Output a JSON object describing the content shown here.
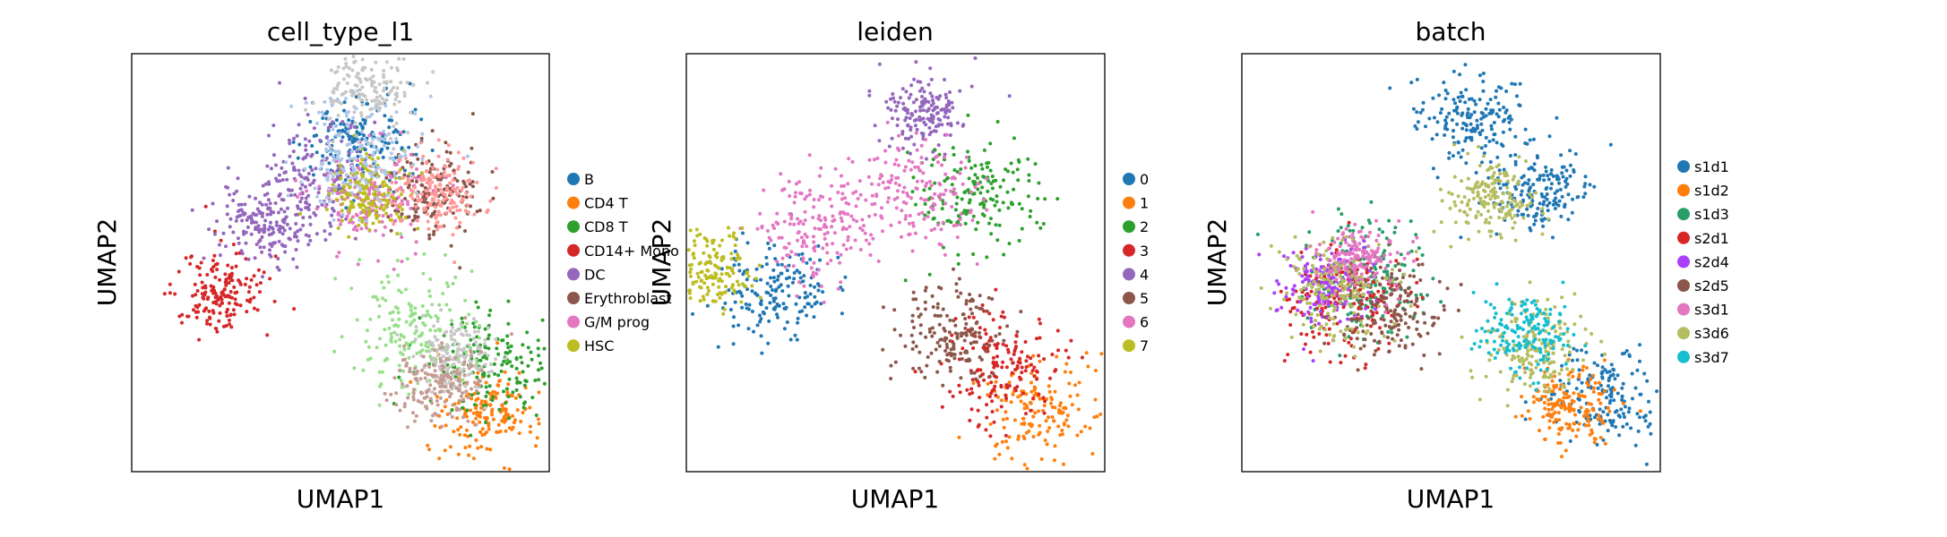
{
  "chart_data": [
    {
      "type": "scatter",
      "title": "cell_type_l1",
      "xlabel": "UMAP1",
      "ylabel": "UMAP2",
      "grid": false,
      "ticks": false,
      "legend_position": "right",
      "series": [
        {
          "name": "B",
          "color": "#1f77b4",
          "centers": [
            [
              0.55,
              0.79
            ]
          ]
        },
        {
          "name": "CD4 T",
          "color": "#ff7f0e",
          "centers": [
            [
              0.85,
              0.14
            ]
          ]
        },
        {
          "name": "CD8 T",
          "color": "#2ca02c",
          "centers": [
            [
              0.86,
              0.26
            ]
          ]
        },
        {
          "name": "CD14+ Mono",
          "color": "#d62728",
          "centers": [
            [
              0.21,
              0.43
            ]
          ]
        },
        {
          "name": "DC",
          "color": "#9467bd",
          "centers": [
            [
              0.44,
              0.7
            ],
            [
              0.31,
              0.59
            ]
          ]
        },
        {
          "name": "Erythroblast",
          "color": "#8c564b",
          "centers": [
            [
              0.71,
              0.67
            ]
          ]
        },
        {
          "name": "G/M prog",
          "color": "#e377c2",
          "centers": [
            [
              0.57,
              0.66
            ]
          ]
        },
        {
          "name": "HSC",
          "color": "#bcbd22",
          "centers": [
            [
              0.56,
              0.67
            ]
          ]
        },
        {
          "name": "",
          "color": "#98df8a",
          "centers": [
            [
              0.67,
              0.34
            ]
          ]
        },
        {
          "name": "",
          "color": "#c7c7c7",
          "centers": [
            [
              0.57,
              0.92
            ],
            [
              0.77,
              0.27
            ]
          ]
        },
        {
          "name": "",
          "color": "#ff9896",
          "centers": [
            [
              0.73,
              0.67
            ]
          ]
        },
        {
          "name": "",
          "color": "#aec7e8",
          "centers": [
            [
              0.54,
              0.76
            ]
          ]
        },
        {
          "name": "",
          "color": "#c49c94",
          "centers": [
            [
              0.74,
              0.22
            ]
          ]
        }
      ]
    },
    {
      "type": "scatter",
      "title": "leiden",
      "xlabel": "UMAP1",
      "ylabel": "UMAP2",
      "grid": false,
      "ticks": false,
      "legend_position": "right",
      "series": [
        {
          "name": "0",
          "color": "#1f77b4",
          "centers": [
            [
              0.21,
              0.43
            ]
          ]
        },
        {
          "name": "1",
          "color": "#ff7f0e",
          "centers": [
            [
              0.85,
              0.14
            ]
          ]
        },
        {
          "name": "2",
          "color": "#2ca02c",
          "centers": [
            [
              0.7,
              0.67
            ]
          ]
        },
        {
          "name": "3",
          "color": "#d62728",
          "centers": [
            [
              0.75,
              0.25
            ]
          ]
        },
        {
          "name": "4",
          "color": "#9467bd",
          "centers": [
            [
              0.57,
              0.86
            ]
          ]
        },
        {
          "name": "5",
          "color": "#8c564b",
          "centers": [
            [
              0.64,
              0.34
            ]
          ]
        },
        {
          "name": "6",
          "color": "#e377c2",
          "centers": [
            [
              0.55,
              0.66
            ],
            [
              0.31,
              0.59
            ]
          ]
        },
        {
          "name": "7",
          "color": "#bcbd22",
          "centers": [
            [
              0.05,
              0.48
            ]
          ]
        }
      ]
    },
    {
      "type": "scatter",
      "title": "batch",
      "xlabel": "UMAP1",
      "ylabel": "UMAP2",
      "grid": false,
      "ticks": false,
      "legend_position": "right",
      "series": [
        {
          "name": "s1d1",
          "color": "#1f77b4",
          "centers": [
            [
              0.55,
              0.85
            ],
            [
              0.72,
              0.67
            ],
            [
              0.87,
              0.18
            ]
          ]
        },
        {
          "name": "s1d2",
          "color": "#ff7f0e",
          "centers": [
            [
              0.78,
              0.16
            ]
          ]
        },
        {
          "name": "s1d3",
          "color": "#279e68",
          "centers": [
            [
              0.3,
              0.45
            ]
          ]
        },
        {
          "name": "s2d1",
          "color": "#d62728",
          "centers": [
            [
              0.25,
              0.4
            ]
          ]
        },
        {
          "name": "s2d4",
          "color": "#aa40fc",
          "centers": [
            [
              0.2,
              0.44
            ]
          ]
        },
        {
          "name": "s2d5",
          "color": "#8c564b",
          "centers": [
            [
              0.35,
              0.38
            ]
          ]
        },
        {
          "name": "s3d1",
          "color": "#e377c2",
          "centers": [
            [
              0.28,
              0.5
            ]
          ]
        },
        {
          "name": "s3d6",
          "color": "#b5bd61",
          "centers": [
            [
              0.22,
              0.43
            ],
            [
              0.6,
              0.66
            ],
            [
              0.7,
              0.3
            ]
          ]
        },
        {
          "name": "s3d7",
          "color": "#17becf",
          "centers": [
            [
              0.68,
              0.33
            ]
          ]
        }
      ]
    }
  ]
}
